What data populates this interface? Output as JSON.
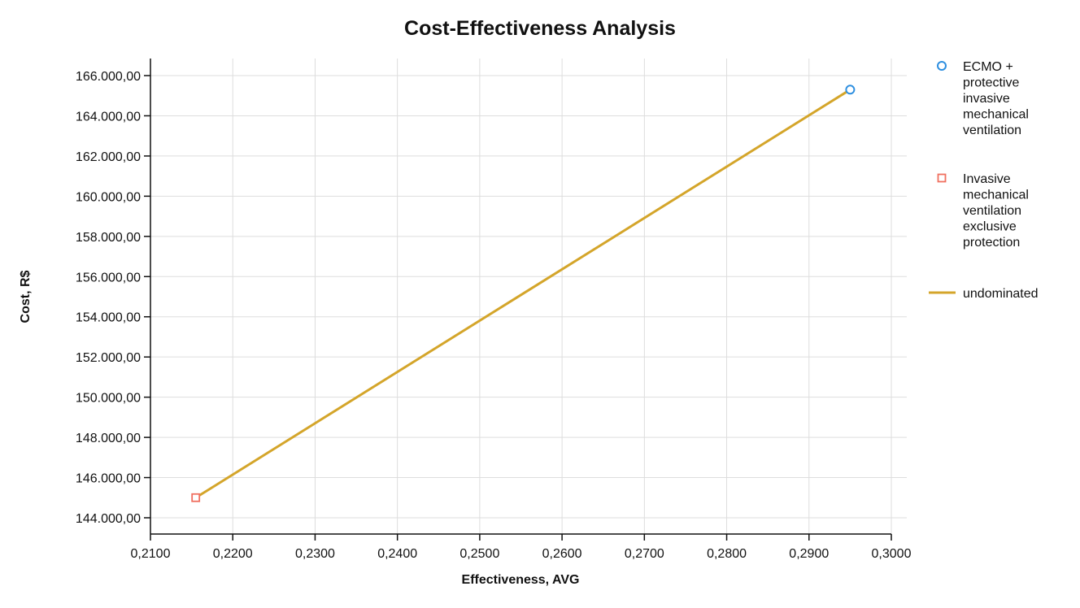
{
  "chart_data": {
    "type": "scatter",
    "title": "Cost-Effectiveness Analysis",
    "xlabel": "Effectiveness, AVG",
    "ylabel": "Cost, R$",
    "xlim": [
      0.21,
      0.3
    ],
    "ylim": [
      144000,
      166000
    ],
    "grid": true,
    "legend_position": "right",
    "x_ticks": [
      "0,2100",
      "0,2200",
      "0,2300",
      "0,2400",
      "0,2500",
      "0,2600",
      "0,2700",
      "0,2800",
      "0,2900",
      "0,3000"
    ],
    "x_tick_values": [
      0.21,
      0.22,
      0.23,
      0.24,
      0.25,
      0.26,
      0.27,
      0.28,
      0.29,
      0.3
    ],
    "y_ticks": [
      "144.000,00",
      "146.000,00",
      "148.000,00",
      "150.000,00",
      "152.000,00",
      "154.000,00",
      "156.000,00",
      "158.000,00",
      "160.000,00",
      "162.000,00",
      "164.000,00",
      "166.000,00"
    ],
    "y_tick_values": [
      144000,
      146000,
      148000,
      150000,
      152000,
      154000,
      156000,
      158000,
      160000,
      162000,
      164000,
      166000
    ],
    "series": [
      {
        "name": "ECMO + protective invasive mechanical ventilation",
        "legend_lines": [
          "ECMO +",
          "protective",
          "invasive",
          "mechanical",
          "ventilation"
        ],
        "marker": "circle",
        "color": "#2e8fe0",
        "points": [
          {
            "x": 0.295,
            "y": 165300
          }
        ]
      },
      {
        "name": "Invasive mechanical ventilation exclusive protection",
        "legend_lines": [
          "Invasive",
          "mechanical",
          "ventilation",
          "exclusive",
          "protection"
        ],
        "marker": "square",
        "color": "#f07060",
        "points": [
          {
            "x": 0.2155,
            "y": 145000
          }
        ]
      },
      {
        "name": "undominated",
        "legend_lines": [
          "undominated"
        ],
        "marker": "line",
        "color": "#d4a52a",
        "points": [
          {
            "x": 0.2155,
            "y": 145000
          },
          {
            "x": 0.295,
            "y": 165300
          }
        ]
      }
    ]
  }
}
